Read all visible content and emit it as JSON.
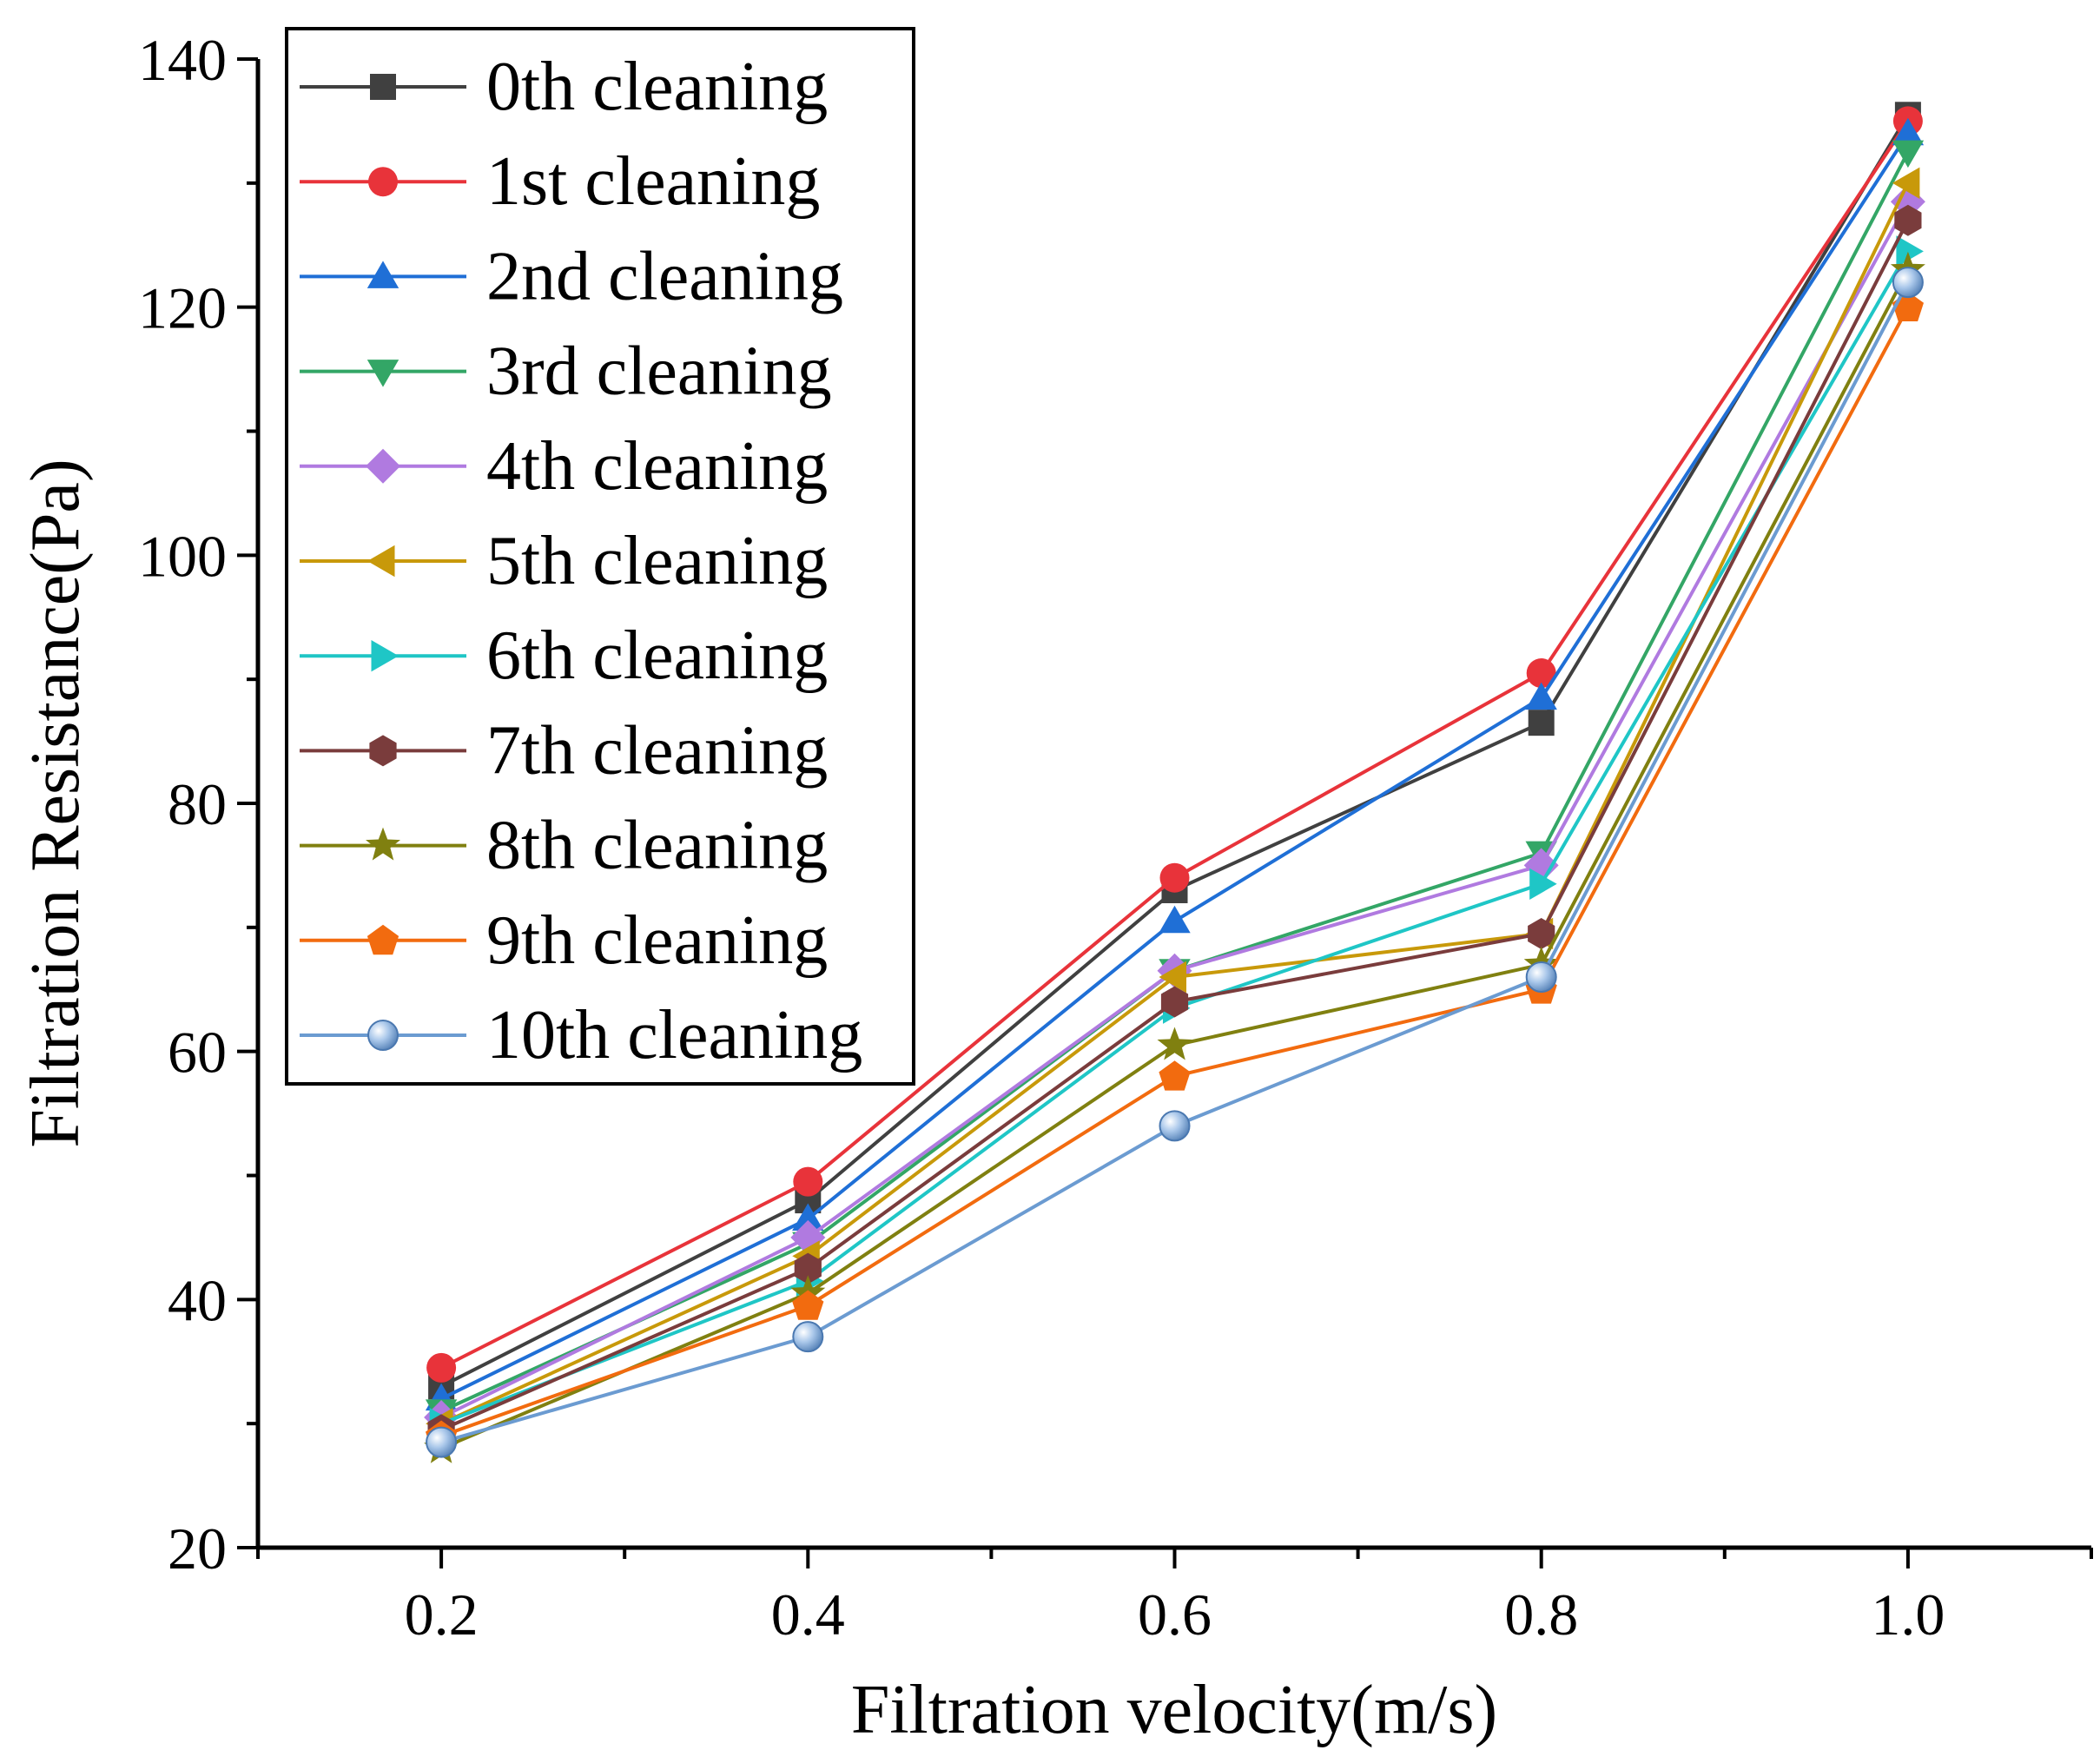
{
  "chart_data": {
    "type": "line",
    "title": "",
    "xlabel": "Filtration velocity(m/s)",
    "ylabel": "Filtration Resistance(Pa)",
    "xlim": [
      0.1,
      1.1
    ],
    "ylim": [
      20,
      140
    ],
    "x": [
      0.2,
      0.4,
      0.6,
      0.8,
      1.0
    ],
    "x_tick_values": [
      0.2,
      0.4,
      0.6,
      0.8,
      1.0
    ],
    "x_tick_labels": [
      "0.2",
      "0.4",
      "0.6",
      "0.8",
      "1.0"
    ],
    "x_minor_ticks": [
      0.1,
      0.3,
      0.5,
      0.7,
      0.9,
      1.1
    ],
    "y_tick_values": [
      20,
      40,
      60,
      80,
      100,
      120,
      140
    ],
    "y_tick_labels": [
      "20",
      "40",
      "60",
      "80",
      "100",
      "120",
      "140"
    ],
    "y_minor_ticks": [
      30,
      50,
      70,
      90,
      110,
      130
    ],
    "grid": false,
    "legend_position": "top-left",
    "series": [
      {
        "name": "0th cleaning",
        "color": "#404040",
        "marker": "square",
        "values": [
          33.0,
          48.0,
          73.0,
          86.5,
          135.5
        ]
      },
      {
        "name": "1st cleaning",
        "color": "#e8333a",
        "marker": "circle",
        "values": [
          34.5,
          49.5,
          74.0,
          90.5,
          135.0
        ]
      },
      {
        "name": "2nd cleaning",
        "color": "#1f6fd6",
        "marker": "triangle-up",
        "values": [
          32.0,
          46.5,
          70.5,
          88.5,
          134.0
        ]
      },
      {
        "name": "3rd cleaning",
        "color": "#33a666",
        "marker": "triangle-down",
        "values": [
          31.0,
          44.5,
          66.5,
          76.0,
          132.5
        ]
      },
      {
        "name": "4th cleaning",
        "color": "#b07ae0",
        "marker": "diamond",
        "values": [
          30.5,
          45.0,
          66.5,
          75.0,
          128.5
        ]
      },
      {
        "name": "5th cleaning",
        "color": "#c8990a",
        "marker": "triangle-left",
        "values": [
          30.0,
          43.5,
          66.0,
          69.5,
          130.0
        ]
      },
      {
        "name": "6th cleaning",
        "color": "#1fc6c6",
        "marker": "triangle-right",
        "values": [
          30.0,
          41.5,
          63.5,
          73.5,
          124.5
        ]
      },
      {
        "name": "7th cleaning",
        "color": "#7a3c3c",
        "marker": "hexagon",
        "values": [
          29.5,
          42.5,
          64.0,
          69.5,
          127.0
        ]
      },
      {
        "name": "8th cleaning",
        "color": "#808010",
        "marker": "star",
        "values": [
          28.0,
          40.5,
          60.5,
          67.0,
          123.0
        ]
      },
      {
        "name": "9th cleaning",
        "color": "#f26b0f",
        "marker": "pentagon",
        "values": [
          29.0,
          39.5,
          58.0,
          65.0,
          120.0
        ]
      },
      {
        "name": "10th cleaning",
        "color": "#6b9bd1",
        "marker": "sphere",
        "values": [
          28.5,
          37.0,
          54.0,
          66.0,
          122.0
        ]
      }
    ]
  }
}
